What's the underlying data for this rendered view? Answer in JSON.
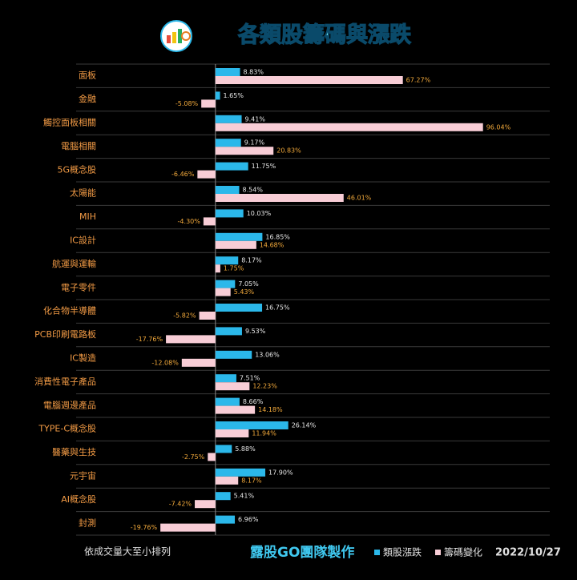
{
  "chart_data": {
    "type": "hbar",
    "title": "各類股籌碼與漲跌",
    "categories": [
      "面板",
      "金融",
      "觸控面板相關",
      "電腦相關",
      "5G概念股",
      "太陽能",
      "MIH",
      "IC設計",
      "航運與運輸",
      "電子零件",
      "化合物半導體",
      "PCB印刷電路板",
      "IC製造",
      "消費性電子產品",
      "電腦週邊產品",
      "TYPE-C概念股",
      "醫藥與生技",
      "元宇宙",
      "AI概念股",
      "封測"
    ],
    "series": [
      {
        "name": "類股漲跌",
        "color": "#2bb8ea",
        "label_color": "#e8e8e8",
        "values": [
          8.83,
          1.65,
          9.41,
          9.17,
          11.75,
          8.54,
          10.03,
          16.85,
          8.17,
          7.05,
          16.75,
          9.53,
          13.06,
          7.51,
          8.66,
          26.14,
          5.88,
          17.9,
          5.41,
          6.96
        ],
        "value_labels": [
          "8.83%",
          "1.65%",
          "9.41%",
          "9.17%",
          "11.75%",
          "8.54%",
          "10.03%",
          "16.85%",
          "8.17%",
          "7.05%",
          "16.75%",
          "9.53%",
          "13.06%",
          "7.51%",
          "8.66%",
          "26.14%",
          "5.88%",
          "17.90%",
          "5.41%",
          "6.96%"
        ]
      },
      {
        "name": "籌碼變化",
        "color": "#f8cdd6",
        "label_color": "#f2a93b",
        "values": [
          67.27,
          -5.08,
          96.04,
          20.83,
          -6.46,
          46.01,
          -4.3,
          14.68,
          1.75,
          5.43,
          -5.82,
          -17.76,
          -12.08,
          12.23,
          14.18,
          11.94,
          -2.75,
          8.17,
          -7.42,
          -19.76
        ],
        "value_labels": [
          "67.27%",
          "-5.08%",
          "96.04%",
          "20.83%",
          "-6.46%",
          "46.01%",
          "-4.30%",
          "14.68%",
          "1.75%",
          "5.43%",
          "-5.82%",
          "-17.76%",
          "-12.08%",
          "12.23%",
          "14.18%",
          "11.94%",
          "-2.75%",
          "8.17%",
          "-7.42%",
          "-19.76%"
        ]
      }
    ],
    "xlim": [
      -50,
      120
    ],
    "note": "依成交量大至小排列",
    "credit": "露股GO團隊製作",
    "date": "2022/10/27"
  }
}
